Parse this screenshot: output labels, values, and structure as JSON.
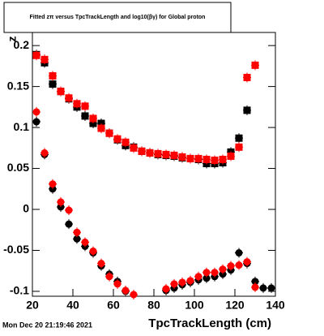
{
  "chart_data": {
    "type": "scatter",
    "title": "Fitted zπ versus TpcTrackLength and log10(βγ) for Global proton",
    "x_label": "TpcTrackLength (cm)",
    "y_label": "z",
    "timestamp": "Mon Dec 20 21:19:46 2021",
    "x": [
      22,
      26,
      30,
      34,
      38,
      42,
      46,
      50,
      54,
      58,
      62,
      66,
      70,
      74,
      78,
      82,
      86,
      90,
      94,
      98,
      102,
      106,
      110,
      114,
      118,
      122,
      126,
      130,
      134,
      138
    ],
    "series": [
      {
        "color": "#000000",
        "marker": "square",
        "values": [
          0.189,
          0.179,
          0.153,
          0.144,
          0.135,
          0.125,
          0.114,
          0.105,
          0.105,
          0.093,
          0.085,
          0.078,
          0.076,
          0.071,
          0.069,
          0.067,
          0.066,
          0.065,
          0.063,
          0.062,
          0.061,
          0.056,
          0.056,
          0.057,
          0.07,
          0.087,
          0.121,
          null,
          null,
          null
        ]
      },
      {
        "color": "#ff0000",
        "marker": "square",
        "values": [
          0.188,
          0.183,
          0.163,
          0.144,
          0.136,
          0.129,
          0.126,
          0.111,
          0.099,
          0.093,
          0.086,
          0.082,
          0.075,
          0.071,
          0.069,
          0.068,
          0.067,
          0.066,
          0.064,
          0.062,
          0.062,
          0.061,
          0.06,
          0.061,
          0.065,
          0.076,
          0.161,
          0.176,
          null,
          null
        ]
      },
      {
        "color": "#000000",
        "marker": "circle",
        "values": [
          0.107,
          0.067,
          0.025,
          0.003,
          -0.018,
          -0.036,
          -0.045,
          -0.053,
          -0.069,
          -0.079,
          -0.088,
          -0.1,
          null,
          null,
          null,
          null,
          -0.099,
          -0.096,
          -0.092,
          -0.089,
          -0.086,
          -0.084,
          -0.082,
          -0.079,
          -0.074,
          -0.053,
          -0.066,
          -0.088,
          -0.096,
          -0.096
        ]
      },
      {
        "color": "#ff0000",
        "marker": "circle",
        "values": [
          0.119,
          0.069,
          0.031,
          0.009,
          -0.001,
          -0.028,
          -0.04,
          -0.051,
          -0.066,
          -0.082,
          -0.091,
          -0.099,
          -0.104,
          null,
          null,
          null,
          -0.097,
          -0.091,
          -0.089,
          -0.087,
          -0.082,
          -0.077,
          -0.077,
          -0.073,
          -0.069,
          -0.068,
          -0.064,
          -0.095,
          null,
          null
        ]
      }
    ],
    "xlim": [
      20,
      140
    ],
    "xticks": [
      20,
      40,
      60,
      80,
      100,
      120,
      140
    ],
    "ylim": [
      -0.106,
      0.216
    ],
    "yticks": [
      -0.1,
      -0.05,
      0,
      0.05,
      0.1,
      0.15,
      0.2
    ]
  }
}
